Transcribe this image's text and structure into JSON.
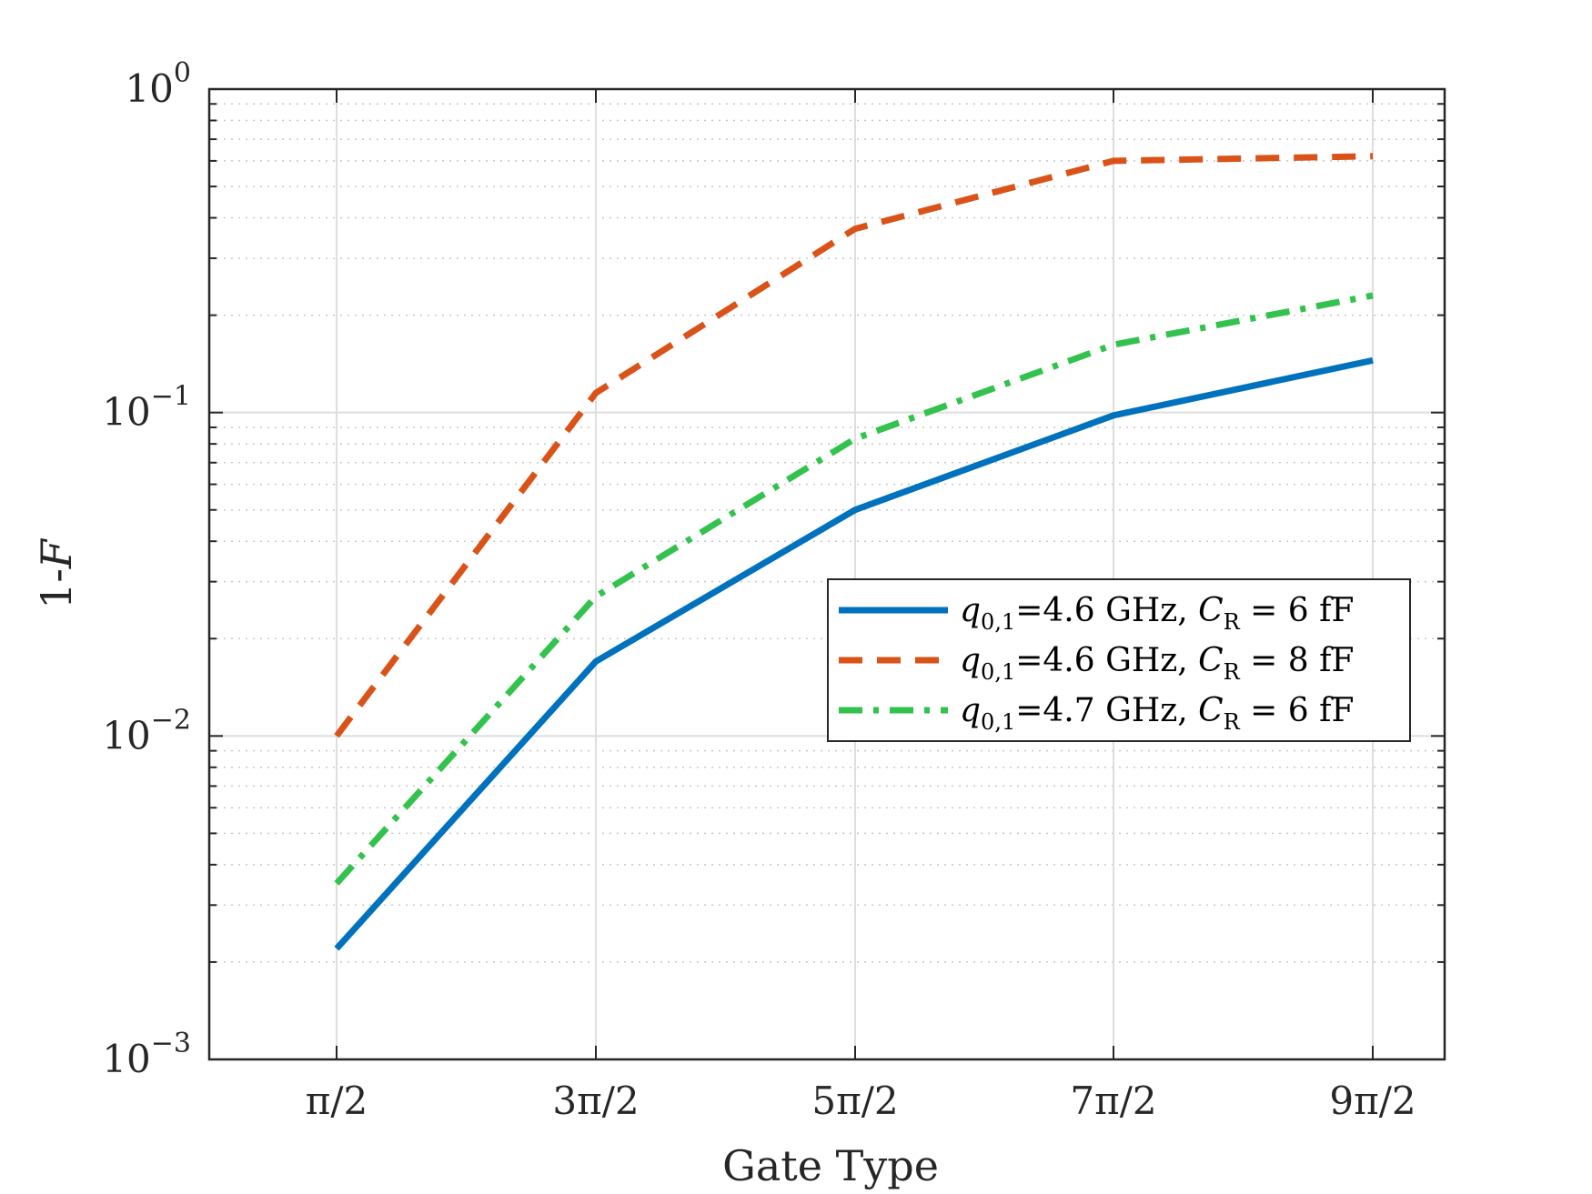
{
  "chart_data": {
    "type": "line",
    "title": "",
    "xlabel": "Gate Type",
    "ylabel": "1-F",
    "yscale": "log",
    "ylim": [
      0.001,
      1
    ],
    "grid": true,
    "minor_grid": true,
    "legend_position": "center-right",
    "categories": [
      "π/2",
      "3π/2",
      "5π/2",
      "7π/2",
      "9π/2"
    ],
    "y_ticks": [
      {
        "value": 1,
        "base": "10",
        "exp": "0"
      },
      {
        "value": 0.1,
        "base": "10",
        "exp": "−1"
      },
      {
        "value": 0.01,
        "base": "10",
        "exp": "−2"
      },
      {
        "value": 0.001,
        "base": "10",
        "exp": "−3"
      }
    ],
    "series": [
      {
        "name": "q0,1=4.6 GHz, CR = 6 fF",
        "label_var": "q",
        "label_sub": "0,1",
        "label_mid": "=4.6 GHz, ",
        "label_var2": "C",
        "label_sub2": "R",
        "label_end": " = 6 fF",
        "color": "#0072BD",
        "style": "solid",
        "values": [
          0.0022,
          0.017,
          0.05,
          0.098,
          0.145
        ]
      },
      {
        "name": "q0,1=4.6 GHz, CR = 8 fF",
        "label_var": "q",
        "label_sub": "0,1",
        "label_mid": "=4.6 GHz, ",
        "label_var2": "C",
        "label_sub2": "R",
        "label_end": " = 8 fF",
        "color": "#D95319",
        "style": "dashed",
        "values": [
          0.01,
          0.115,
          0.37,
          0.6,
          0.62
        ]
      },
      {
        "name": "q0,1=4.7 GHz, CR = 6 fF",
        "label_var": "q",
        "label_sub": "0,1",
        "label_mid": "=4.7 GHz, ",
        "label_var2": "C",
        "label_sub2": "R",
        "label_end": " = 6 fF",
        "color": "#33C24D",
        "style": "dashdot",
        "values": [
          0.0035,
          0.027,
          0.083,
          0.162,
          0.23
        ]
      }
    ]
  }
}
